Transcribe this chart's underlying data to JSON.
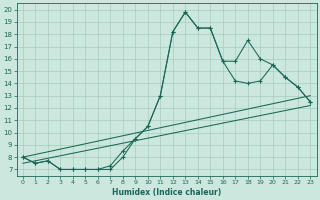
{
  "xlabel": "Humidex (Indice chaleur)",
  "xlim": [
    -0.5,
    23.5
  ],
  "ylim": [
    6.5,
    20.5
  ],
  "xticks": [
    0,
    1,
    2,
    3,
    4,
    5,
    6,
    7,
    8,
    9,
    10,
    11,
    12,
    13,
    14,
    15,
    16,
    17,
    18,
    19,
    20,
    21,
    22,
    23
  ],
  "yticks": [
    7,
    8,
    9,
    10,
    11,
    12,
    13,
    14,
    15,
    16,
    17,
    18,
    19,
    20
  ],
  "bg_color": "#cce8de",
  "line_color": "#1a6655",
  "grid_color": "#a8ccbe",
  "line1": {
    "x": [
      0,
      1,
      2,
      3,
      4,
      5,
      6,
      7,
      8,
      9,
      10,
      11,
      12,
      13,
      14,
      15,
      16,
      17,
      18,
      19,
      20,
      21,
      22,
      23
    ],
    "y": [
      8.0,
      7.5,
      7.7,
      7.0,
      7.0,
      7.0,
      7.0,
      7.0,
      8.0,
      9.5,
      10.5,
      13.0,
      18.2,
      19.8,
      18.5,
      18.5,
      15.8,
      15.8,
      17.5,
      16.0,
      15.5,
      14.5,
      13.7,
      12.5
    ]
  },
  "line2": {
    "x": [
      0,
      1,
      2,
      3,
      4,
      5,
      6,
      7,
      8,
      9,
      10,
      11,
      12,
      13,
      14,
      15,
      16,
      17,
      18,
      19,
      20,
      21,
      22,
      23
    ],
    "y": [
      8.0,
      7.5,
      7.7,
      7.0,
      7.0,
      7.0,
      7.0,
      7.3,
      8.5,
      9.5,
      10.5,
      13.0,
      18.2,
      19.8,
      18.5,
      18.5,
      15.8,
      14.2,
      14.0,
      14.2,
      15.5,
      14.5,
      13.7,
      12.5
    ]
  },
  "reg1": {
    "x": [
      0,
      23
    ],
    "y": [
      8.0,
      13.0
    ]
  },
  "reg2": {
    "x": [
      0,
      23
    ],
    "y": [
      7.5,
      12.2
    ]
  }
}
